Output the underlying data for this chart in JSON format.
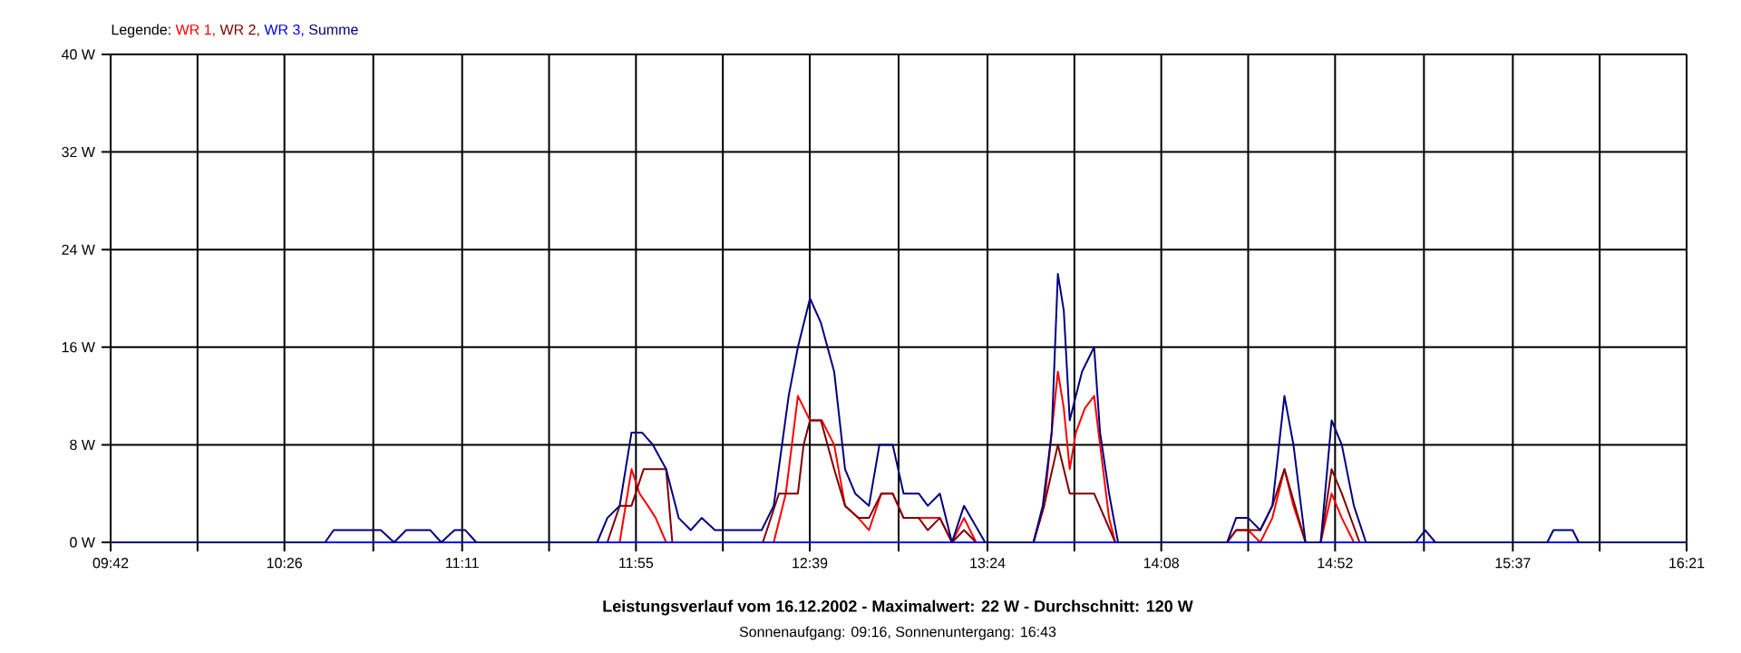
{
  "chart_data": {
    "type": "line",
    "title": "Leistungsverlauf vom 16.12.2002 - Maximalwert: 22 W - Durchschnitt: 120 W",
    "subtitle": "Sonnenaufgang: 09:16, Sonnenuntergang: 16:43",
    "legend_title": "Legende:",
    "legend": "top left",
    "grid": true,
    "marker": "none",
    "line_style": "solid",
    "xlim": [
      9.7,
      16.35
    ],
    "ylim": [
      0,
      40
    ],
    "xticks": [
      {
        "value": 9.7,
        "label": "09:42"
      },
      {
        "value": 10.0667,
        "label": null
      },
      {
        "value": 10.4333,
        "label": "10:26"
      },
      {
        "value": 10.8083,
        "label": null
      },
      {
        "value": 11.1833,
        "label": "11:11"
      },
      {
        "value": 11.55,
        "label": null
      },
      {
        "value": 11.9167,
        "label": "11:55"
      },
      {
        "value": 12.2833,
        "label": null
      },
      {
        "value": 12.65,
        "label": "12:39"
      },
      {
        "value": 13.025,
        "label": null
      },
      {
        "value": 13.4,
        "label": "13:24"
      },
      {
        "value": 13.7667,
        "label": null
      },
      {
        "value": 14.1333,
        "label": "14:08"
      },
      {
        "value": 14.5,
        "label": null
      },
      {
        "value": 14.8667,
        "label": "14:52"
      },
      {
        "value": 15.2417,
        "label": null
      },
      {
        "value": 15.6167,
        "label": "15:37"
      },
      {
        "value": 15.9833,
        "label": null
      },
      {
        "value": 16.35,
        "label": "16:21"
      }
    ],
    "yticks": [
      {
        "value": 0,
        "label": "0 W"
      },
      {
        "value": 8,
        "label": "8 W"
      },
      {
        "value": 16,
        "label": "16 W"
      },
      {
        "value": 24,
        "label": "24 W"
      },
      {
        "value": 32,
        "label": "32 W"
      },
      {
        "value": 40,
        "label": "40 W"
      }
    ],
    "series": [
      {
        "name": "WR 1,",
        "color": "#ff0000",
        "x": [
          11.848,
          11.898,
          11.932,
          11.967,
          12.0,
          12.044,
          12.498,
          12.549,
          12.6,
          12.651,
          12.701,
          12.753,
          12.799,
          12.855,
          12.9,
          12.952,
          13.0,
          13.046,
          13.199,
          13.25,
          13.301,
          13.352,
          13.594,
          13.639,
          13.697,
          13.722,
          13.747,
          13.773,
          13.811,
          13.85,
          13.875,
          13.913,
          13.939,
          14.411,
          14.449,
          14.5,
          14.551,
          14.602,
          14.653,
          14.691,
          14.742,
          14.806,
          14.852,
          14.895,
          14.946
        ],
        "values": [
          0,
          6,
          4,
          3,
          2,
          0,
          0,
          4,
          12,
          10,
          10,
          8,
          3,
          2,
          1,
          4,
          4,
          2,
          2,
          0,
          2,
          0,
          0,
          3,
          14,
          11,
          6,
          9,
          11,
          12,
          8,
          2,
          0,
          0,
          1,
          1,
          0,
          2,
          6,
          3,
          0,
          0,
          4,
          2,
          0
        ]
      },
      {
        "name": "WR 2,",
        "color": "#800000",
        "x": [
          11.796,
          11.848,
          11.898,
          11.949,
          12.044,
          12.07,
          12.452,
          12.52,
          12.6,
          12.624,
          12.651,
          12.697,
          12.753,
          12.799,
          12.855,
          12.9,
          12.952,
          13.0,
          13.046,
          13.11,
          13.148,
          13.199,
          13.25,
          13.301,
          13.352,
          13.594,
          13.639,
          13.697,
          13.747,
          13.85,
          13.939,
          14.411,
          14.449,
          14.551,
          14.602,
          14.653,
          14.742,
          14.806,
          14.852,
          14.895,
          14.97
        ],
        "values": [
          0,
          3,
          3,
          6,
          6,
          0,
          0,
          4,
          4,
          8,
          10,
          10,
          6,
          3,
          2,
          2,
          4,
          4,
          2,
          2,
          1,
          2,
          0,
          1,
          0,
          0,
          3,
          8,
          4,
          4,
          0,
          0,
          1,
          1,
          3,
          6,
          0,
          0,
          6,
          4,
          0
        ]
      },
      {
        "name": "WR 3,",
        "color": "#0000ff",
        "x": [
          9.7,
          16.35
        ],
        "values": [
          0,
          0
        ]
      },
      {
        "name": "Summe",
        "color": "#000080",
        "x": [
          9.7,
          10.605,
          10.641,
          10.84,
          10.896,
          10.947,
          11.049,
          11.095,
          11.151,
          11.197,
          11.243,
          11.753,
          11.796,
          11.848,
          11.898,
          11.942,
          11.988,
          12.044,
          12.097,
          12.148,
          12.194,
          12.25,
          12.447,
          12.498,
          12.561,
          12.6,
          12.651,
          12.697,
          12.753,
          12.799,
          12.842,
          12.9,
          12.944,
          13.0,
          13.046,
          13.11,
          13.148,
          13.199,
          13.25,
          13.301,
          13.39,
          13.594,
          13.633,
          13.671,
          13.697,
          13.722,
          13.747,
          13.773,
          13.799,
          13.85,
          13.875,
          13.913,
          13.951,
          14.411,
          14.449,
          14.5,
          14.551,
          14.602,
          14.653,
          14.691,
          14.742,
          14.806,
          14.852,
          14.895,
          14.946,
          14.997,
          15.207,
          15.247,
          15.29,
          15.762,
          15.788,
          15.869,
          15.895,
          16.35
        ],
        "values": [
          0,
          0,
          1,
          1,
          0,
          1,
          1,
          0,
          1,
          1,
          0,
          0,
          2,
          3,
          9,
          9,
          8,
          6,
          2,
          1,
          2,
          1,
          1,
          3,
          12,
          16,
          20,
          18,
          14,
          6,
          4,
          3,
          8,
          8,
          4,
          4,
          3,
          4,
          0,
          3,
          0,
          0,
          3,
          9,
          22,
          19,
          10,
          12,
          14,
          16,
          9,
          4,
          0,
          0,
          2,
          2,
          1,
          3,
          12,
          8,
          0,
          0,
          10,
          8,
          3,
          0,
          0,
          1,
          0,
          0,
          1,
          1,
          0,
          0
        ]
      }
    ]
  }
}
